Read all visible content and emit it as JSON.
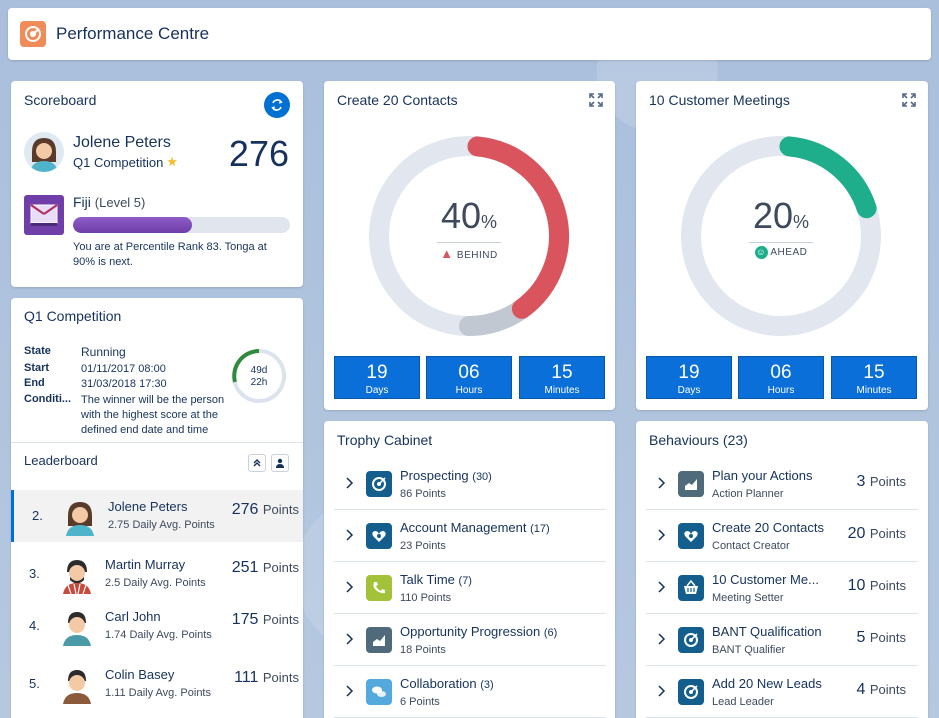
{
  "header": {
    "title": "Performance Centre"
  },
  "scoreboard": {
    "title": "Scoreboard",
    "user_name": "Jolene Peters",
    "competition": "Q1 Competition",
    "score": "276",
    "level_name": "Fiji",
    "level": "(Level 5)",
    "level_progress": 0.55,
    "note": "You are at Percentile Rank 83. Tonga at 90% is next."
  },
  "competition": {
    "title": "Q1 Competition",
    "state_key": "State",
    "state_val": "Running",
    "start_key": "Start",
    "start_val": "01/11/2017 08:00",
    "end_key": "End",
    "end_val": "31/03/2018 17:30",
    "cond_key": "Conditi...",
    "cond_val": "The winner will be the person with the highest score at the defined end date and time",
    "ring_days": "49d",
    "ring_hours": "22h"
  },
  "leaderboard": {
    "title": "Leaderboard",
    "rows": [
      {
        "rank": "2.",
        "name": "Jolene Peters",
        "avg": "2.75 Daily Avg. Points",
        "points": "276",
        "unit": "Points"
      },
      {
        "rank": "3.",
        "name": "Martin Murray",
        "avg": "2.5 Daily Avg. Points",
        "points": "251",
        "unit": "Points"
      },
      {
        "rank": "4.",
        "name": "Carl John",
        "avg": "1.74 Daily Avg. Points",
        "points": "175",
        "unit": "Points"
      },
      {
        "rank": "5.",
        "name": "Colin Basey",
        "avg": "1.11 Daily Avg. Points",
        "points": "111",
        "unit": "Points"
      }
    ]
  },
  "goal1": {
    "title": "Create 20 Contacts",
    "percent": "40",
    "pct_sign": "%",
    "status": "BEHIND",
    "progress": 0.4,
    "color": "#d9545c",
    "days": "19",
    "days_lbl": "Days",
    "hours": "06",
    "hours_lbl": "Hours",
    "minutes": "15",
    "minutes_lbl": "Minutes"
  },
  "goal2": {
    "title": "10 Customer Meetings",
    "percent": "20",
    "pct_sign": "%",
    "status": "AHEAD",
    "progress": 0.2,
    "color": "#1fae8c",
    "days": "19",
    "days_lbl": "Days",
    "hours": "06",
    "hours_lbl": "Hours",
    "minutes": "15",
    "minutes_lbl": "Minutes"
  },
  "trophy": {
    "title": "Trophy Cabinet",
    "items": [
      {
        "name": "Prospecting",
        "count": "(30)",
        "points": "86 Points",
        "icon": "target-icon",
        "color": "#135e8c"
      },
      {
        "name": "Account Management",
        "count": "(17)",
        "points": "23 Points",
        "icon": "contact-card-icon",
        "color": "#135e8c"
      },
      {
        "name": "Talk Time",
        "count": "(7)",
        "points": "110 Points",
        "icon": "phone-icon",
        "color": "#a3c23a"
      },
      {
        "name": "Opportunity Progression",
        "count": "(6)",
        "points": "18 Points",
        "icon": "chart-icon",
        "color": "#4f6a7a"
      },
      {
        "name": "Collaboration",
        "count": "(3)",
        "points": "6 Points",
        "icon": "chat-icon",
        "color": "#54a9dd"
      }
    ]
  },
  "behaviours": {
    "title": "Behaviours (23)",
    "items": [
      {
        "name": "Plan your Actions",
        "sub": "Action Planner",
        "points": "3",
        "unit": "Points",
        "icon": "chart-icon",
        "color": "#4f6a7a"
      },
      {
        "name": "Create 20 Contacts",
        "sub": "Contact Creator",
        "points": "20",
        "unit": "Points",
        "icon": "contact-card-icon",
        "color": "#135e8c"
      },
      {
        "name": "10 Customer Me...",
        "sub": "Meeting Setter",
        "points": "10",
        "unit": "Points",
        "icon": "basket-icon",
        "color": "#135e8c"
      },
      {
        "name": "BANT Qualification",
        "sub": "BANT Qualifier",
        "points": "5",
        "unit": "Points",
        "icon": "target-icon",
        "color": "#135e8c"
      },
      {
        "name": "Add 20 New Leads",
        "sub": "Lead Leader",
        "points": "4",
        "unit": "Points",
        "icon": "target-icon",
        "color": "#135e8c"
      }
    ]
  }
}
